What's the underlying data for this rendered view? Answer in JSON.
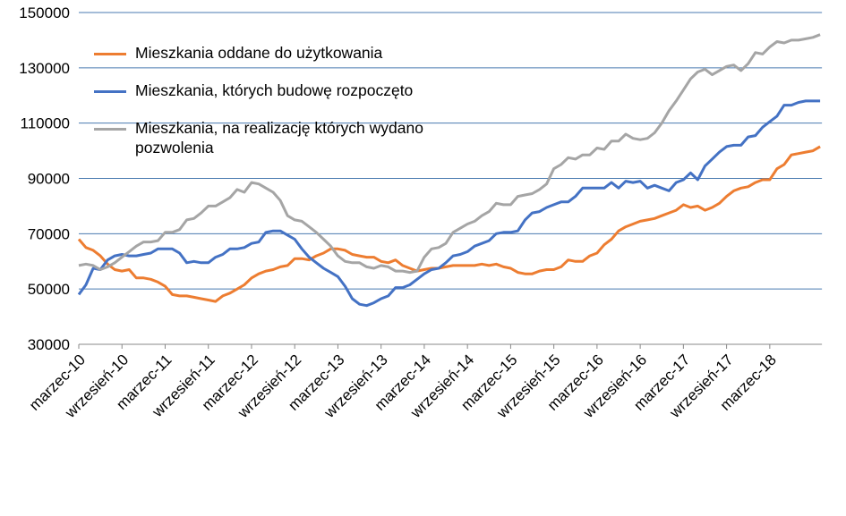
{
  "chart_data": {
    "type": "line",
    "categories": [
      "marzec-10",
      null,
      null,
      null,
      null,
      null,
      "wrzesień-10",
      null,
      null,
      null,
      null,
      null,
      "marzec-11",
      null,
      null,
      null,
      null,
      null,
      "wrzesień-11",
      null,
      null,
      null,
      null,
      null,
      "marzec-12",
      null,
      null,
      null,
      null,
      null,
      "wrzesień-12",
      null,
      null,
      null,
      null,
      null,
      "marzec-13",
      null,
      null,
      null,
      null,
      null,
      "wrzesień-13",
      null,
      null,
      null,
      null,
      null,
      "marzec-14",
      null,
      null,
      null,
      null,
      null,
      "wrzesień-14",
      null,
      null,
      null,
      null,
      null,
      "marzec-15",
      null,
      null,
      null,
      null,
      null,
      "wrzesień-15",
      null,
      null,
      null,
      null,
      null,
      "marzec-16",
      null,
      null,
      null,
      null,
      null,
      "wrzesień-16",
      null,
      null,
      null,
      null,
      null,
      "marzec-17",
      null,
      null,
      null,
      null,
      null,
      "wrzesień-17",
      null,
      null,
      null,
      null,
      null,
      "marzec-18",
      null,
      null,
      null,
      null,
      null,
      null,
      null
    ],
    "series": [
      {
        "name": "Mieszkania oddane do użytkowania",
        "color": "#ed7d31",
        "values": [
          68000,
          65000,
          64000,
          62000,
          59000,
          57000,
          56500,
          57000,
          54000,
          54000,
          53500,
          52500,
          51000,
          48000,
          47500,
          47500,
          47000,
          46500,
          46000,
          45500,
          47500,
          48500,
          50000,
          51500,
          54000,
          55500,
          56500,
          57000,
          58000,
          58500,
          61000,
          61000,
          60500,
          62000,
          63000,
          64500,
          64500,
          64000,
          62500,
          62000,
          61500,
          61500,
          60000,
          59500,
          60500,
          58500,
          57500,
          56500,
          57000,
          57500,
          57500,
          58000,
          58500,
          58500,
          58500,
          58500,
          59000,
          58500,
          59000,
          58000,
          57500,
          56000,
          55500,
          55500,
          56500,
          57000,
          57000,
          58000,
          60500,
          60000,
          60000,
          62000,
          63000,
          66000,
          68000,
          71000,
          72500,
          73500,
          74500,
          75000,
          75500,
          76500,
          77500,
          78500,
          80500,
          79500,
          80000,
          78500,
          79500,
          81000,
          83500,
          85500,
          86500,
          87000,
          88500,
          89500,
          89500,
          93500,
          95000,
          98500,
          99000,
          99500,
          100000,
          101500
        ]
      },
      {
        "name": "Mieszkania, których budowę rozpoczęto",
        "color": "#4472c4",
        "values": [
          48000,
          51500,
          57500,
          57000,
          60500,
          62000,
          62500,
          62000,
          62000,
          62500,
          63000,
          64500,
          64500,
          64500,
          63000,
          59500,
          60000,
          59500,
          59500,
          61500,
          62500,
          64500,
          64500,
          65000,
          66500,
          67000,
          70500,
          71000,
          71000,
          69500,
          68000,
          64500,
          61500,
          59500,
          57500,
          56000,
          54500,
          51000,
          46500,
          44500,
          44000,
          45000,
          46500,
          47500,
          50500,
          50500,
          51500,
          53500,
          55500,
          57000,
          57500,
          59500,
          62000,
          62500,
          63500,
          65500,
          66500,
          67500,
          70000,
          70500,
          70500,
          71000,
          75000,
          77500,
          78000,
          79500,
          80500,
          81500,
          81500,
          83500,
          86500,
          86500,
          86500,
          86500,
          88500,
          86500,
          89000,
          88500,
          89000,
          86500,
          87500,
          86500,
          85500,
          88500,
          89500,
          92000,
          89500,
          94500,
          97000,
          99500,
          101500,
          102000,
          102000,
          105000,
          105500,
          108500,
          110500,
          112500,
          116500,
          116500,
          117500,
          118000,
          118000,
          118000
        ]
      },
      {
        "name": "Mieszkania, na realizację których wydano pozwolenia",
        "color": "#a5a5a5",
        "values": [
          58500,
          59000,
          58500,
          57000,
          58000,
          59500,
          61500,
          63500,
          65500,
          67000,
          67000,
          67500,
          70500,
          70500,
          71500,
          75000,
          75500,
          77500,
          80000,
          80000,
          81500,
          83000,
          86000,
          85000,
          88500,
          88000,
          86500,
          85000,
          82000,
          76500,
          75000,
          74500,
          72500,
          70500,
          68000,
          65500,
          62000,
          60000,
          59500,
          59500,
          58000,
          57500,
          58500,
          58000,
          56500,
          56500,
          56000,
          56500,
          61500,
          64500,
          65000,
          66500,
          70500,
          72000,
          73500,
          74500,
          76500,
          78000,
          81000,
          80500,
          80500,
          83500,
          84000,
          84500,
          86000,
          88000,
          93500,
          95000,
          97500,
          97000,
          98500,
          98500,
          101000,
          100500,
          103500,
          103500,
          106000,
          104500,
          104000,
          104500,
          106500,
          110000,
          114500,
          118000,
          122000,
          126000,
          128500,
          129500,
          127500,
          129000,
          130500,
          131000,
          129000,
          131500,
          135500,
          135000,
          137500,
          139500,
          139000,
          140000,
          140000,
          140500,
          141000,
          142000
        ]
      }
    ],
    "ylim": [
      30000,
      150000
    ],
    "yticks": [
      30000,
      50000,
      70000,
      90000,
      110000,
      130000,
      150000
    ],
    "grid": true,
    "legend": "upper left"
  }
}
